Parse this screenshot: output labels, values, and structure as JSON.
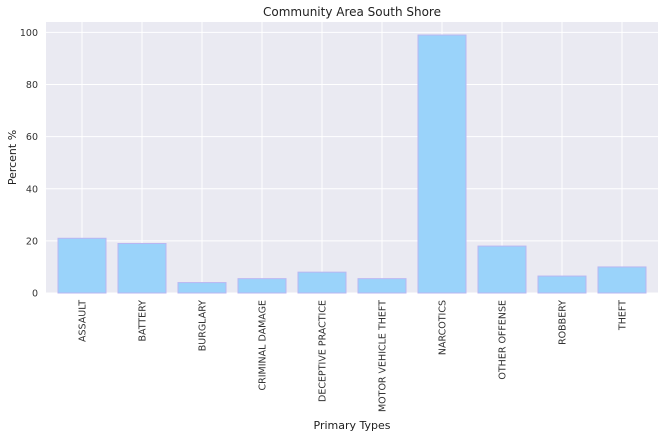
{
  "chart_data": {
    "type": "bar",
    "title": "Community Area South Shore",
    "xlabel": "Primary Types",
    "ylabel": "Percent %",
    "categories": [
      "ASSAULT",
      "BATTERY",
      "BURGLARY",
      "CRIMINAL DAMAGE",
      "DECEPTIVE PRACTICE",
      "MOTOR VEHICLE THEFT",
      "NARCOTICS",
      "OTHER OFFENSE",
      "ROBBERY",
      "THEFT"
    ],
    "values": [
      21,
      19,
      4,
      5.5,
      8,
      5.5,
      99,
      18,
      6.5,
      10
    ],
    "ylim": [
      0,
      104
    ],
    "yticks": [
      "0",
      "20",
      "40",
      "60",
      "80",
      "100"
    ],
    "grid": true,
    "colors": {
      "bar_fill": "#9ad3fa",
      "bar_edge": "#b9b6f2",
      "plot_bg": "#eaeaf2",
      "grid": "#ffffff"
    }
  }
}
